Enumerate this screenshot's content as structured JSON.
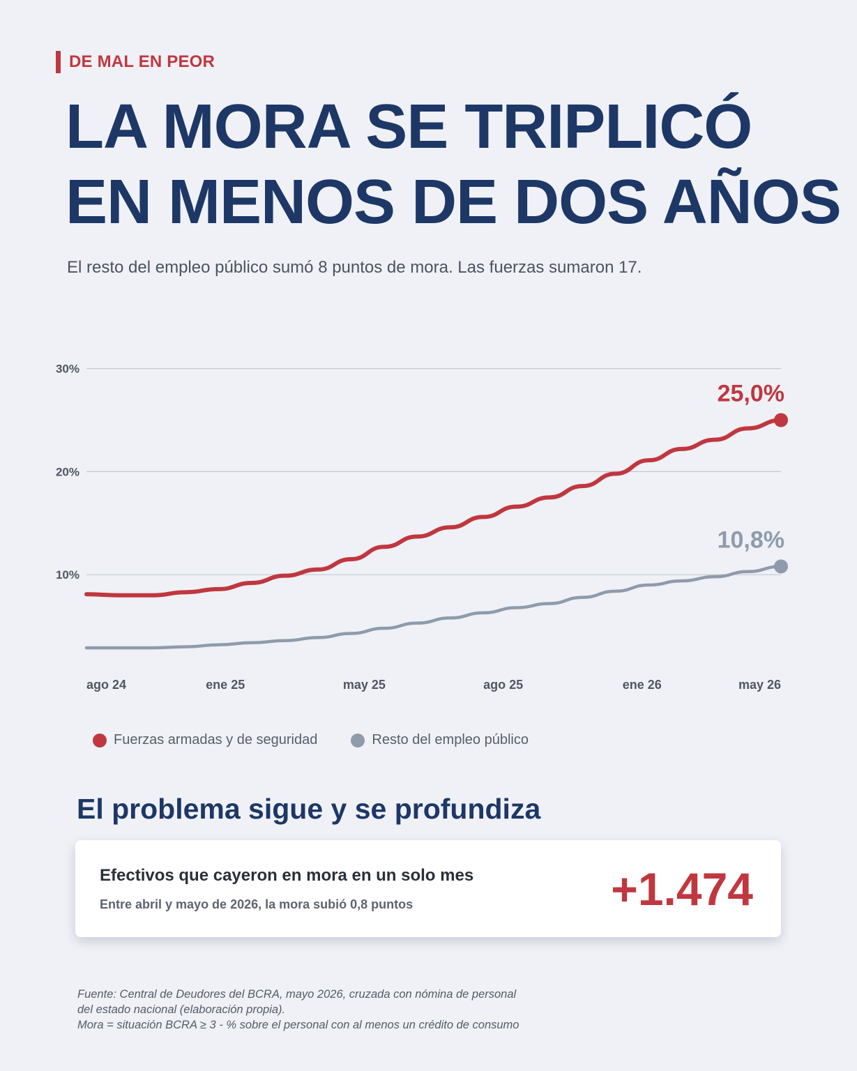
{
  "header": {
    "kicker": "DE MAL EN PEOR",
    "title_line1": "LA MORA SE TRIPLICÓ",
    "title_line2": "EN MENOS DE DOS AÑOS",
    "subtitle": "El resto del empleo público sumó 8 puntos de mora. Las fuerzas sumaron 17."
  },
  "chart_data": {
    "type": "line",
    "x_labels": [
      "ago 24",
      "ene 25",
      "may 25",
      "ago 25",
      "ene 26",
      "may 26"
    ],
    "yticks": [
      "10%",
      "20%",
      "30%"
    ],
    "ylim": [
      0,
      30
    ],
    "grid": true,
    "legend_position": "bottom",
    "colors": {
      "fuerzas": "#c0373f",
      "resto": "#8e9bad"
    },
    "series": [
      {
        "name": "Fuerzas armadas y de seguridad",
        "color": "#c0373f",
        "end_label": "25,0%",
        "values": [
          8.1,
          8.0,
          8.0,
          8.3,
          8.6,
          9.2,
          9.9,
          10.5,
          11.5,
          12.7,
          13.7,
          14.6,
          15.6,
          16.6,
          17.5,
          18.6,
          19.8,
          21.1,
          22.2,
          23.1,
          24.2,
          25.0
        ]
      },
      {
        "name": "Resto del empleo público",
        "color": "#8e9bad",
        "end_label": "10,8%",
        "values": [
          2.9,
          2.9,
          2.9,
          3.0,
          3.2,
          3.4,
          3.6,
          3.9,
          4.3,
          4.8,
          5.3,
          5.8,
          6.3,
          6.8,
          7.2,
          7.8,
          8.4,
          9.0,
          9.4,
          9.8,
          10.3,
          10.8
        ]
      }
    ]
  },
  "section": {
    "title": "El problema sigue y se profundiza"
  },
  "card": {
    "label": "Efectivos que cayeron en mora en un solo mes",
    "sub": "Entre abril y mayo de 2026, la mora subió 0,8 puntos",
    "value": "+1.474"
  },
  "source": {
    "line1": "Fuente: Central de Deudores del BCRA, mayo 2026, cruzada con nómina de personal",
    "line2": "del estado nacional (elaboración propia).",
    "line3": "Mora = situación BCRA ≥ 3 - % sobre el personal con al menos un crédito de consumo"
  }
}
